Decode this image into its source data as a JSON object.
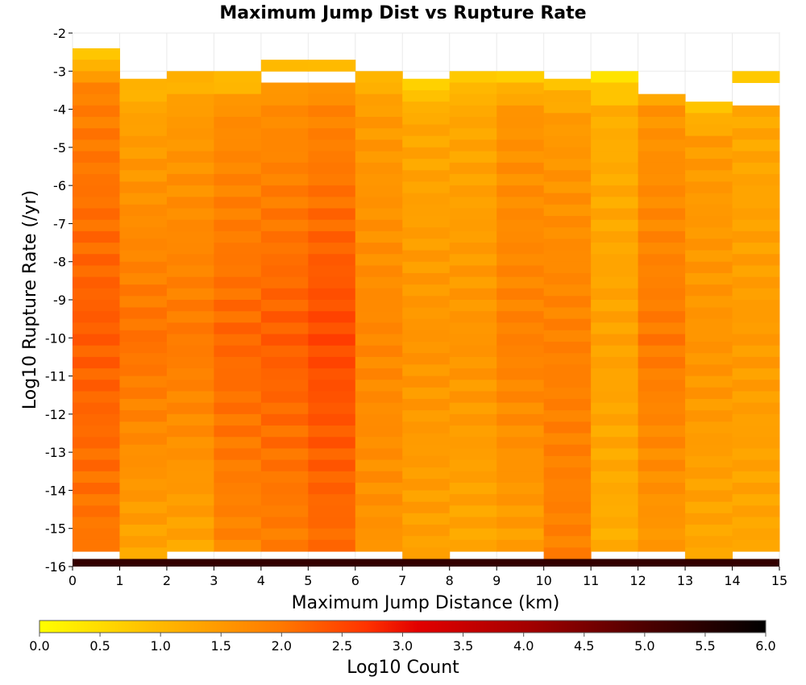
{
  "chart_data": {
    "type": "heatmap",
    "title": "Maximum Jump Dist vs Rupture Rate",
    "xlabel": "Maximum Jump Distance (km)",
    "ylabel": "Log10 Rupture Rate (/yr)",
    "xlim": [
      0,
      15
    ],
    "ylim": [
      -16,
      -2
    ],
    "x_ticks": [
      "0",
      "1",
      "2",
      "3",
      "4",
      "5",
      "6",
      "7",
      "8",
      "9",
      "10",
      "11",
      "12",
      "13",
      "14",
      "15"
    ],
    "y_ticks": [
      "-2",
      "-3",
      "-4",
      "-5",
      "-6",
      "-7",
      "-8",
      "-9",
      "-10",
      "-11",
      "-12",
      "-13",
      "-14",
      "-15",
      "-16"
    ],
    "x_bin_width": 1,
    "y_bin_height": 0.3,
    "grid": true,
    "colorbar": {
      "label": "Log10 Count",
      "range": [
        0,
        6
      ],
      "ticks": [
        "0.0",
        "0.5",
        "1.0",
        "1.5",
        "2.0",
        "2.5",
        "3.0",
        "3.5",
        "4.0",
        "4.5",
        "5.0",
        "5.5",
        "6.0"
      ],
      "colors": [
        "#ffff00",
        "#ff9900",
        "#ff4400",
        "#e00000",
        "#a00000",
        "#000000"
      ]
    },
    "columns": [
      {
        "x": 0,
        "top_rate": -2.4,
        "top_value": 0.6,
        "low_value": 1.9,
        "peak_value": 2.3,
        "bottom_value": 2.0
      },
      {
        "x": 1,
        "top_rate": -3.2,
        "top_value": 1.0,
        "low_value": 1.4,
        "peak_value": 2.1,
        "bottom_value": 1.3
      },
      {
        "x": 2,
        "top_rate": -3.0,
        "top_value": 1.0,
        "low_value": 1.5,
        "peak_value": 2.0,
        "bottom_value": 1.3
      },
      {
        "x": 3,
        "top_rate": -3.0,
        "top_value": 0.8,
        "low_value": 1.7,
        "peak_value": 2.2,
        "bottom_value": 1.8
      },
      {
        "x": 4,
        "top_rate": -2.7,
        "top_value": 0.8,
        "low_value": 1.7,
        "peak_value": 2.3,
        "bottom_value": 1.9
      },
      {
        "x": 5,
        "top_rate": -2.7,
        "top_value": 0.8,
        "low_value": 1.8,
        "peak_value": 2.5,
        "bottom_value": 2.1
      },
      {
        "x": 6,
        "top_rate": -3.0,
        "top_value": 1.0,
        "low_value": 1.5,
        "peak_value": 1.8,
        "bottom_value": 1.6
      },
      {
        "x": 7,
        "top_rate": -3.2,
        "top_value": 0.6,
        "low_value": 1.3,
        "peak_value": 1.6,
        "bottom_value": 1.4
      },
      {
        "x": 8,
        "top_rate": -3.0,
        "top_value": 0.8,
        "low_value": 1.3,
        "peak_value": 1.6,
        "bottom_value": 1.3
      },
      {
        "x": 9,
        "top_rate": -3.0,
        "top_value": 0.7,
        "low_value": 1.6,
        "peak_value": 1.9,
        "bottom_value": 1.4
      },
      {
        "x": 10,
        "top_rate": -3.2,
        "top_value": 0.9,
        "low_value": 1.5,
        "peak_value": 1.9,
        "bottom_value": 1.9
      },
      {
        "x": 11,
        "top_rate": -3.0,
        "top_value": 0.4,
        "low_value": 1.2,
        "peak_value": 1.4,
        "bottom_value": 1.2
      },
      {
        "x": 12,
        "top_rate": -3.0,
        "top_value": 0.9,
        "low_value": 1.6,
        "peak_value": 2.0,
        "bottom_value": 1.5
      },
      {
        "x": 13,
        "top_rate": -3.8,
        "top_value": 0.8,
        "low_value": 1.5,
        "peak_value": 1.6,
        "bottom_value": 1.3
      },
      {
        "x": 14,
        "top_rate": -3.0,
        "top_value": 0.7,
        "low_value": 1.3,
        "peak_value": 1.5,
        "bottom_value": 1.3
      }
    ],
    "gaps": [
      {
        "x": 4,
        "from": -3.2,
        "to": -3.0
      },
      {
        "x": 5,
        "from": -3.2,
        "to": -3.0
      },
      {
        "x": 12,
        "from": -3.6,
        "to": -3.2
      },
      {
        "x": 14,
        "from": -3.8,
        "to": -3.3
      }
    ],
    "bottom_row": {
      "rate": -15.9,
      "value": 5.3
    }
  }
}
